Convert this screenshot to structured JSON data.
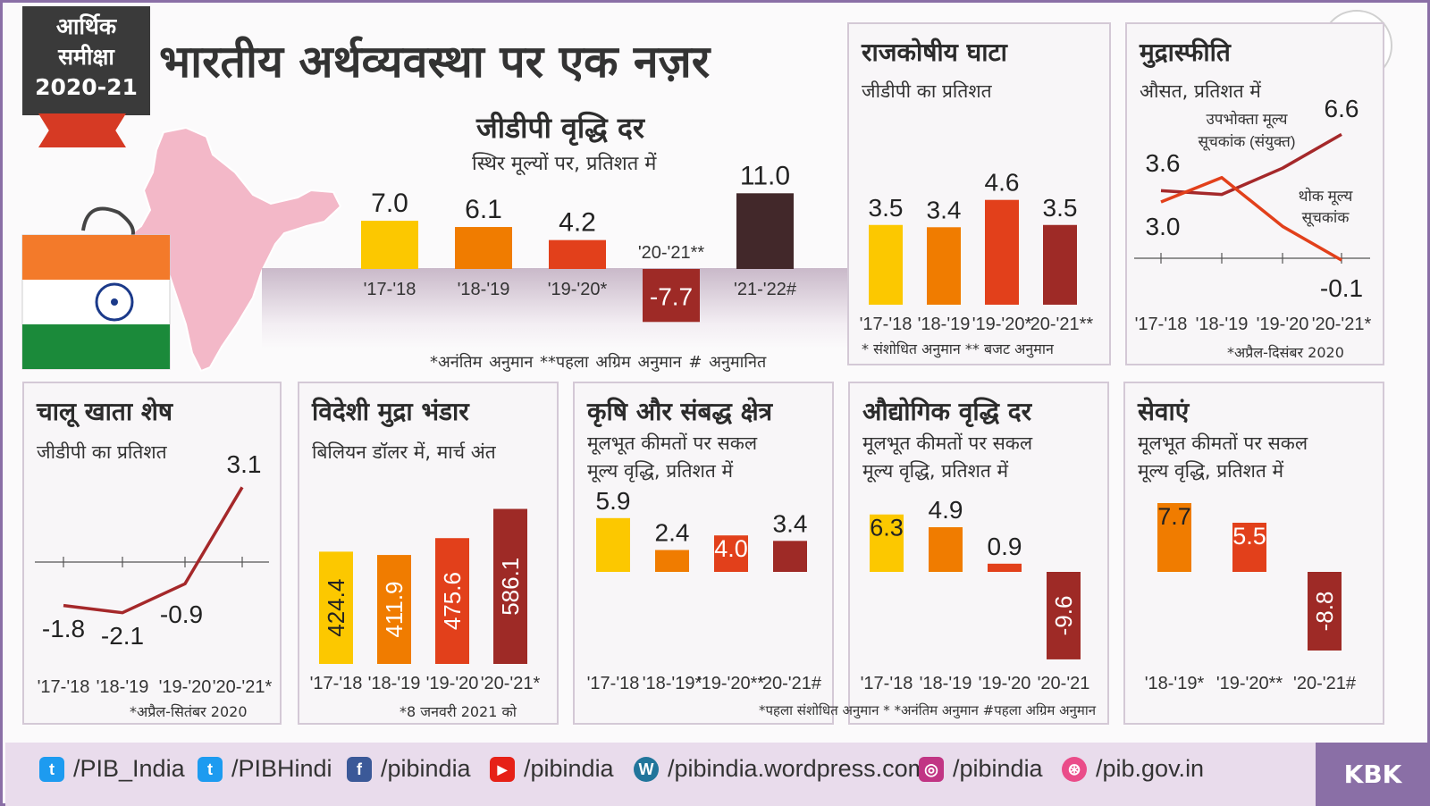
{
  "badge": {
    "line1": "आर्थिक",
    "line2": "समीक्षा",
    "line3": "2020-21"
  },
  "title": "भारतीय अर्थव्यवस्था पर एक नज़र",
  "logo_text": "pib",
  "colors": {
    "yellow": "#fcc800",
    "orange": "#f07c00",
    "red": "#e2401b",
    "maroon": "#9e2a26",
    "dark": "#42282a",
    "line": "#a5282a",
    "frame": "#8a6fa6"
  },
  "gdp": {
    "title": "जीडीपी वृद्धि दर",
    "subtitle": "स्थिर मूल्यों पर, प्रतिशत में",
    "notes": "*अनंतिम अनुमान  **पहला अग्रिम अनुमान  # अनुमानित"
  },
  "panels": {
    "fiscal": {
      "title": "राजकोषीय घाटा",
      "sub1": "जीडीपी का प्रतिशत",
      "sub2": "",
      "note": "* संशोधित अनुमान ** बजट अनुमान"
    },
    "inflation": {
      "title": "मुद्रास्फीति",
      "sub1": "औसत, प्रतिशत में",
      "sub2": "",
      "note": "*अप्रैल-दिसंबर 2020",
      "cpi_label1": "उपभोक्ता मूल्य",
      "cpi_label2": "सूचकांक (संयुक्त)",
      "wpi_label1": "थोक मूल्य",
      "wpi_label2": "सूचकांक"
    },
    "cab": {
      "title": "चालू खाता शेष",
      "sub1": "जीडीपी का प्रतिशत",
      "sub2": "",
      "note": "*अप्रैल-सितंबर 2020"
    },
    "forex": {
      "title": "विदेशी मुद्रा भंडार",
      "sub1": "बिलियन डॉलर में, मार्च अंत",
      "sub2": "",
      "note": "*8 जनवरी 2021 को"
    },
    "agri": {
      "title": "कृषि और संबद्ध क्षेत्र",
      "sub1": "मूलभूत कीमतों पर सकल",
      "sub2": "मूल्य वृद्धि, प्रतिशत में",
      "note": ""
    },
    "industry": {
      "title": "औद्योगिक वृद्धि दर",
      "sub1": "मूलभूत कीमतों पर सकल",
      "sub2": "मूल्य वृद्धि, प्रतिशत में",
      "note": ""
    },
    "services": {
      "title": "सेवाएं",
      "sub1": "मूलभूत कीमतों पर सकल",
      "sub2": "मूल्य वृद्धि, प्रतिशत में",
      "note": ""
    }
  },
  "bottom_note": "*पहला संशोधित अनुमान * *अनंतिम अनुमान #पहला अग्रिम अनुमान",
  "footer": {
    "kbk": "KBK",
    "handles": [
      {
        "icon": "twitter-icon",
        "text": "/PIB_India",
        "color": "#1d9bf0",
        "glyph": "t"
      },
      {
        "icon": "twitter-icon",
        "text": "/PIBHindi",
        "color": "#1d9bf0",
        "glyph": "t"
      },
      {
        "icon": "facebook-icon",
        "text": "/pibindia",
        "color": "#3b5998",
        "glyph": "f"
      },
      {
        "icon": "youtube-icon",
        "text": "/pibindia",
        "color": "#e62117",
        "glyph": "▶"
      },
      {
        "icon": "wordpress-icon",
        "text": "/pibindia.wordpress.com",
        "color": "#21759b",
        "glyph": "W"
      },
      {
        "icon": "instagram-icon",
        "text": "/pibindia",
        "color": "#c13584",
        "glyph": "◎"
      },
      {
        "icon": "dribbble-icon",
        "text": "/pib.gov.in",
        "color": "#ea4c89",
        "glyph": "⊛"
      }
    ]
  },
  "chart_data": [
    {
      "id": "gdp",
      "type": "bar",
      "title": "जीडीपी वृद्धि दर",
      "categories": [
        "'17-'18",
        "'18-'19",
        "'19-'20*",
        "'20-'21**",
        "'21-'22#"
      ],
      "values": [
        7.0,
        6.1,
        4.2,
        -7.7,
        11.0
      ],
      "labels": [
        "7.0",
        "6.1",
        "4.2",
        "-7.7",
        "11.0"
      ],
      "colors": [
        "#fcc800",
        "#f07c00",
        "#e2401b",
        "#9e2a26",
        "#42282a"
      ]
    },
    {
      "id": "fiscal",
      "type": "bar",
      "title": "राजकोषीय घाटा",
      "categories": [
        "'17-'18",
        "'18-'19",
        "'19-'20*",
        "'20-'21**"
      ],
      "values": [
        3.5,
        3.4,
        4.6,
        3.5
      ],
      "labels": [
        "3.5",
        "3.4",
        "4.6",
        "3.5"
      ],
      "colors": [
        "#fcc800",
        "#f07c00",
        "#e2401b",
        "#9e2a26"
      ]
    },
    {
      "id": "inflation",
      "type": "line",
      "title": "मुद्रास्फीति",
      "categories": [
        "'17-'18",
        "'18-'19",
        "'19-'20",
        "'20-'21*"
      ],
      "series": [
        {
          "name": "उपभोक्ता मूल्य सूचकांक (संयुक्त)",
          "values": [
            3.6,
            3.4,
            4.8,
            6.6
          ]
        },
        {
          "name": "थोक मूल्य सूचकांक",
          "values": [
            3.0,
            4.3,
            1.7,
            -0.1
          ]
        }
      ],
      "labels": [
        "3.6",
        "3.0",
        "6.6",
        "-0.1"
      ]
    },
    {
      "id": "cab",
      "type": "line",
      "title": "चालू खाता शेष",
      "categories": [
        "'17-'18",
        "'18-'19",
        "'19-'20",
        "'20-'21*"
      ],
      "values": [
        -1.8,
        -2.1,
        -0.9,
        3.1
      ],
      "labels": [
        "-1.8",
        "-2.1",
        "-0.9",
        "3.1"
      ]
    },
    {
      "id": "forex",
      "type": "bar",
      "title": "विदेशी मुद्रा भंडार",
      "categories": [
        "'17-'18",
        "'18-'19",
        "'19-'20",
        "'20-'21*"
      ],
      "values": [
        424.4,
        411.9,
        475.6,
        586.1
      ],
      "labels": [
        "424.4",
        "411.9",
        "475.6",
        "586.1"
      ],
      "colors": [
        "#fcc800",
        "#f07c00",
        "#e2401b",
        "#9e2a26"
      ]
    },
    {
      "id": "agri",
      "type": "bar",
      "title": "कृषि और संबद्ध क्षेत्र",
      "categories": [
        "'17-'18",
        "'18-'19*",
        "'19-'20**",
        "'20-'21#"
      ],
      "values": [
        5.9,
        2.4,
        4.0,
        3.4
      ],
      "labels": [
        "5.9",
        "2.4",
        "4.0",
        "3.4"
      ],
      "colors": [
        "#fcc800",
        "#f07c00",
        "#e2401b",
        "#9e2a26"
      ]
    },
    {
      "id": "industry",
      "type": "bar",
      "title": "औद्योगिक वृद्धि दर",
      "categories": [
        "'17-'18",
        "'18-'19",
        "'19-'20",
        "'20-'21"
      ],
      "values": [
        6.3,
        4.9,
        0.9,
        -9.6
      ],
      "labels": [
        "6.3",
        "4.9",
        "0.9",
        "-9.6"
      ],
      "colors": [
        "#fcc800",
        "#f07c00",
        "#e2401b",
        "#9e2a26"
      ]
    },
    {
      "id": "services",
      "type": "bar",
      "title": "सेवाएं",
      "categories": [
        "'18-'19*",
        "'19-'20**",
        "'20-'21#"
      ],
      "values": [
        7.7,
        5.5,
        -8.8
      ],
      "labels": [
        "7.7",
        "5.5",
        "-8.8"
      ],
      "colors": [
        "#f07c00",
        "#e2401b",
        "#9e2a26"
      ]
    }
  ]
}
